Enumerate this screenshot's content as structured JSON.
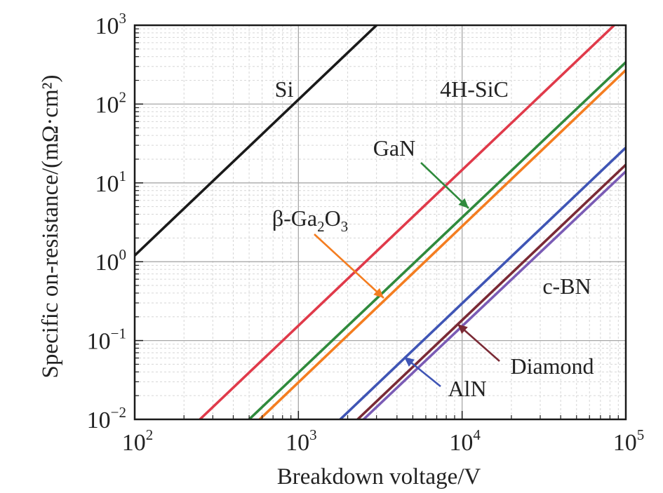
{
  "chart_data": {
    "type": "line",
    "x_scale": "log",
    "y_scale": "log",
    "xlim": [
      100,
      100000
    ],
    "ylim": [
      0.01,
      1000
    ],
    "grid": true,
    "xlabel": "Breakdown voltage/V",
    "ylabel": "Specific on-resistance/(mΩ·cm²)",
    "x_ticks": [
      {
        "base": "10",
        "exp": "2",
        "value": 100
      },
      {
        "base": "10",
        "exp": "3",
        "value": 1000
      },
      {
        "base": "10",
        "exp": "4",
        "value": 10000
      },
      {
        "base": "10",
        "exp": "5",
        "value": 100000
      }
    ],
    "y_ticks": [
      {
        "base": "10",
        "exp": "−2",
        "value": 0.01
      },
      {
        "base": "10",
        "exp": "−1",
        "value": 0.1
      },
      {
        "base": "10",
        "exp": "0",
        "value": 1
      },
      {
        "base": "10",
        "exp": "1",
        "value": 10
      },
      {
        "base": "10",
        "exp": "2",
        "value": 100
      },
      {
        "base": "10",
        "exp": "3",
        "value": 1000
      }
    ],
    "series": [
      {
        "name": "Si",
        "color": "#1a1a1a",
        "points": [
          [
            100,
            1.2
          ],
          [
            3000,
            1000
          ]
        ]
      },
      {
        "name": "4H-SiC",
        "color": "#e03a4a",
        "points": [
          [
            250,
            0.01
          ],
          [
            85000,
            1000
          ]
        ]
      },
      {
        "name": "GaN",
        "color": "#2f8a3c",
        "points": [
          [
            500,
            0.01
          ],
          [
            100000,
            340
          ]
        ]
      },
      {
        "name": "β-Ga2O3",
        "color": "#f47d20",
        "points": [
          [
            580,
            0.01
          ],
          [
            100000,
            270
          ]
        ]
      },
      {
        "name": "AlN",
        "color": "#3f55b5",
        "points": [
          [
            1800,
            0.01
          ],
          [
            100000,
            28
          ]
        ]
      },
      {
        "name": "Diamond",
        "color": "#7a2a35",
        "points": [
          [
            2300,
            0.01
          ],
          [
            100000,
            17
          ]
        ]
      },
      {
        "name": "c-BN",
        "color": "#7a5bb5",
        "points": [
          [
            2500,
            0.01
          ],
          [
            100000,
            14
          ]
        ]
      }
    ],
    "annotations": [
      {
        "series": "Si",
        "text": "Si",
        "arrow": false
      },
      {
        "series": "4H-SiC",
        "text": "4H-SiC",
        "arrow": false
      },
      {
        "series": "GaN",
        "text": "GaN",
        "arrow": true,
        "arrow_color": "#2f8a3c"
      },
      {
        "series": "β-Ga2O3",
        "text": "β-Ga",
        "sub1": "2",
        "text2": "O",
        "sub2": "3",
        "arrow": true,
        "arrow_color": "#f47d20"
      },
      {
        "series": "c-BN",
        "text": "c-BN",
        "arrow": false
      },
      {
        "series": "Diamond",
        "text": "Diamond",
        "arrow": true,
        "arrow_color": "#7a2a35"
      },
      {
        "series": "AlN",
        "text": "AlN",
        "arrow": true,
        "arrow_color": "#3f55b5"
      }
    ]
  }
}
